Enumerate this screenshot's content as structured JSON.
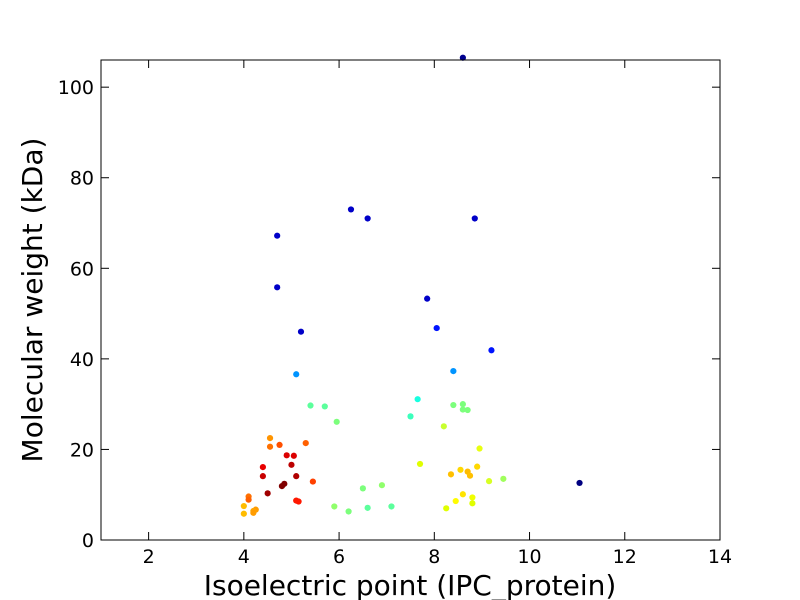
{
  "chart_data": {
    "type": "scatter",
    "title": "",
    "xlabel": "Isoelectric point (IPC_protein)",
    "ylabel": "Molecular weight (kDa)",
    "xlim": [
      1,
      14
    ],
    "ylim": [
      0,
      106
    ],
    "xticks": [
      2,
      4,
      6,
      8,
      10,
      12,
      14
    ],
    "yticks": [
      0,
      20,
      40,
      60,
      80,
      100
    ],
    "grid": false,
    "legend": "none",
    "color_scale": "jet (color encodes point density)",
    "points": [
      {
        "x": 8.6,
        "y": 106.5,
        "color": "#00008f"
      },
      {
        "x": 6.25,
        "y": 73.0,
        "color": "#0000c8"
      },
      {
        "x": 6.6,
        "y": 71.0,
        "color": "#0000c8"
      },
      {
        "x": 8.85,
        "y": 71.0,
        "color": "#0000c8"
      },
      {
        "x": 4.7,
        "y": 67.2,
        "color": "#0000c8"
      },
      {
        "x": 4.7,
        "y": 55.8,
        "color": "#0000c8"
      },
      {
        "x": 7.85,
        "y": 53.3,
        "color": "#0000c8"
      },
      {
        "x": 8.05,
        "y": 46.8,
        "color": "#0014ff"
      },
      {
        "x": 5.2,
        "y": 46.0,
        "color": "#0000c8"
      },
      {
        "x": 9.2,
        "y": 41.9,
        "color": "#0014ff"
      },
      {
        "x": 8.4,
        "y": 37.3,
        "color": "#0094ff"
      },
      {
        "x": 5.1,
        "y": 36.6,
        "color": "#0094ff"
      },
      {
        "x": 7.65,
        "y": 31.1,
        "color": "#18ffe0"
      },
      {
        "x": 5.4,
        "y": 29.7,
        "color": "#5cff9c"
      },
      {
        "x": 5.7,
        "y": 29.5,
        "color": "#5cff9c"
      },
      {
        "x": 8.4,
        "y": 29.8,
        "color": "#7cff7c"
      },
      {
        "x": 8.6,
        "y": 30.0,
        "color": "#7cff7c"
      },
      {
        "x": 8.6,
        "y": 28.8,
        "color": "#7cff7c"
      },
      {
        "x": 8.7,
        "y": 28.7,
        "color": "#7cff7c"
      },
      {
        "x": 7.5,
        "y": 27.3,
        "color": "#3cffbc"
      },
      {
        "x": 5.95,
        "y": 26.1,
        "color": "#7cff7c"
      },
      {
        "x": 8.2,
        "y": 25.1,
        "color": "#c8ff30"
      },
      {
        "x": 4.55,
        "y": 22.5,
        "color": "#ff9400"
      },
      {
        "x": 5.3,
        "y": 21.4,
        "color": "#ff6000"
      },
      {
        "x": 4.75,
        "y": 21.0,
        "color": "#ff5000"
      },
      {
        "x": 4.55,
        "y": 20.6,
        "color": "#ff7000"
      },
      {
        "x": 8.95,
        "y": 20.2,
        "color": "#e8ff10"
      },
      {
        "x": 4.9,
        "y": 18.7,
        "color": "#dc0000"
      },
      {
        "x": 5.05,
        "y": 18.6,
        "color": "#dc0000"
      },
      {
        "x": 5.0,
        "y": 16.6,
        "color": "#bc0000"
      },
      {
        "x": 7.7,
        "y": 16.8,
        "color": "#e0ff00"
      },
      {
        "x": 4.4,
        "y": 16.1,
        "color": "#e80000"
      },
      {
        "x": 8.9,
        "y": 16.2,
        "color": "#ffd800"
      },
      {
        "x": 8.55,
        "y": 15.5,
        "color": "#ffd800"
      },
      {
        "x": 8.7,
        "y": 15.1,
        "color": "#ffbc00"
      },
      {
        "x": 8.35,
        "y": 14.5,
        "color": "#ffc000"
      },
      {
        "x": 8.75,
        "y": 14.2,
        "color": "#ffc000"
      },
      {
        "x": 4.4,
        "y": 14.1,
        "color": "#c80000"
      },
      {
        "x": 5.1,
        "y": 14.1,
        "color": "#b00000"
      },
      {
        "x": 9.45,
        "y": 13.5,
        "color": "#a0ff5c"
      },
      {
        "x": 5.45,
        "y": 12.9,
        "color": "#ff4000"
      },
      {
        "x": 9.15,
        "y": 13.0,
        "color": "#d8ff24"
      },
      {
        "x": 11.05,
        "y": 12.6,
        "color": "#000080"
      },
      {
        "x": 4.85,
        "y": 12.4,
        "color": "#800000"
      },
      {
        "x": 4.8,
        "y": 11.9,
        "color": "#800000"
      },
      {
        "x": 6.9,
        "y": 12.1,
        "color": "#90ff6c"
      },
      {
        "x": 6.5,
        "y": 11.4,
        "color": "#7cff7c"
      },
      {
        "x": 4.5,
        "y": 10.3,
        "color": "#a00000"
      },
      {
        "x": 8.6,
        "y": 10.1,
        "color": "#ffe400"
      },
      {
        "x": 8.8,
        "y": 9.4,
        "color": "#f0ff00"
      },
      {
        "x": 4.1,
        "y": 9.6,
        "color": "#ff7000"
      },
      {
        "x": 4.1,
        "y": 8.9,
        "color": "#ff6000"
      },
      {
        "x": 5.1,
        "y": 8.7,
        "color": "#ff1800"
      },
      {
        "x": 5.15,
        "y": 8.5,
        "color": "#ff1800"
      },
      {
        "x": 8.45,
        "y": 8.6,
        "color": "#fffc00"
      },
      {
        "x": 8.8,
        "y": 8.1,
        "color": "#e0ff00"
      },
      {
        "x": 4.0,
        "y": 7.5,
        "color": "#ffbc00"
      },
      {
        "x": 5.9,
        "y": 7.4,
        "color": "#90ff6c"
      },
      {
        "x": 7.1,
        "y": 7.4,
        "color": "#5cff9c"
      },
      {
        "x": 6.6,
        "y": 7.1,
        "color": "#5cff9c"
      },
      {
        "x": 8.25,
        "y": 7.0,
        "color": "#e0ff00"
      },
      {
        "x": 4.25,
        "y": 6.7,
        "color": "#ff9c00"
      },
      {
        "x": 4.2,
        "y": 6.4,
        "color": "#ffa400"
      },
      {
        "x": 6.2,
        "y": 6.3,
        "color": "#7cff7c"
      },
      {
        "x": 4.2,
        "y": 6.0,
        "color": "#ff9c00"
      },
      {
        "x": 4.0,
        "y": 5.8,
        "color": "#ffbc00"
      }
    ]
  }
}
